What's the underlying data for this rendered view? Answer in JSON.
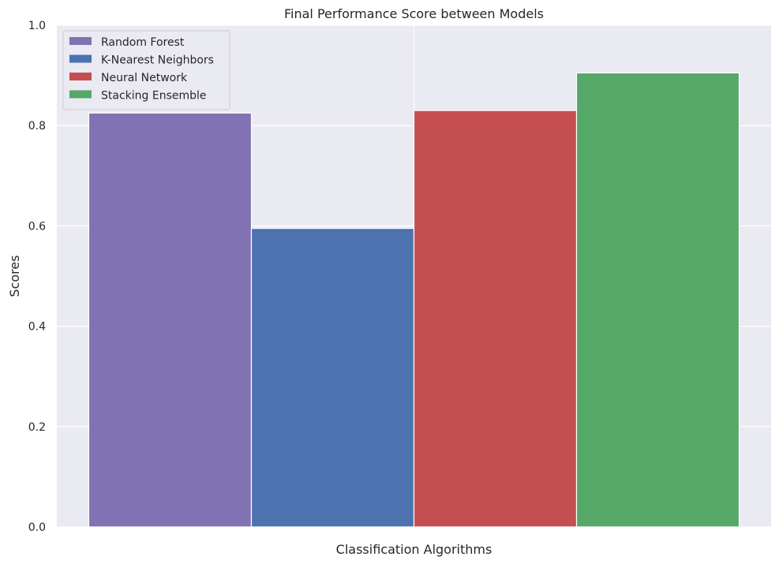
{
  "chart_data": {
    "type": "bar",
    "title": "Final Performance Score between Models",
    "xlabel": "Classification Algorithms",
    "ylabel": "Scores",
    "ylim": [
      0,
      1.0
    ],
    "yticks": [
      "0.0",
      "0.2",
      "0.4",
      "0.6",
      "0.8",
      "1.0"
    ],
    "grid": true,
    "legend_position": "top-left",
    "series": [
      {
        "name": "Random Forest",
        "values": [
          0.825
        ],
        "color": "#8172b3"
      },
      {
        "name": "K-Nearest Neighbors",
        "values": [
          0.595
        ],
        "color": "#4c72b0"
      },
      {
        "name": "Neural Network",
        "values": [
          0.83
        ],
        "color": "#c44e52"
      },
      {
        "name": "Stacking Ensemble",
        "values": [
          0.905
        ],
        "color": "#55a868"
      }
    ],
    "colors": {
      "plot_background": "#eaeaf2",
      "grid": "#ffffff",
      "text": "#262626"
    }
  }
}
